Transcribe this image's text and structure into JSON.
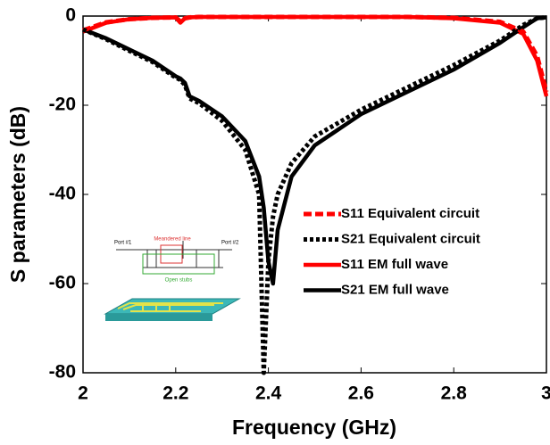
{
  "chart_data": {
    "type": "line",
    "xlabel": "Frequency (GHz)",
    "ylabel": "S parameters (dB)",
    "x": [
      2,
      2.05,
      2.1,
      2.15,
      2.2,
      2.21,
      2.22,
      2.23,
      2.25,
      2.3,
      2.35,
      2.38,
      2.39,
      2.4,
      2.41,
      2.42,
      2.45,
      2.5,
      2.6,
      2.7,
      2.8,
      2.9,
      2.95,
      2.98,
      3
    ],
    "series": [
      {
        "name": "S11 Equivalent circuit",
        "color": "#ff0000",
        "dash": "dashed",
        "values": [
          -3.2,
          -1.4,
          -0.7,
          -0.4,
          -0.3,
          -1.2,
          -0.5,
          -0.3,
          -0.2,
          -0.2,
          -0.2,
          -0.2,
          -0.2,
          -0.2,
          -0.2,
          -0.2,
          -0.2,
          -0.2,
          -0.2,
          -0.2,
          -0.4,
          -1.3,
          -3.5,
          -9,
          -17
        ]
      },
      {
        "name": "S21 Equivalent circuit",
        "color": "#000000",
        "dash": "dotted",
        "values": [
          -3,
          -5.2,
          -7.8,
          -10.3,
          -13.8,
          -14.3,
          -15.5,
          -18.5,
          -19.5,
          -23.5,
          -30,
          -40,
          -80,
          -55,
          -45,
          -40,
          -33,
          -27,
          -21,
          -16,
          -11,
          -5.5,
          -2,
          -0.5,
          -0.3
        ]
      },
      {
        "name": "S11 EM full wave",
        "color": "#ff0000",
        "dash": "solid",
        "values": [
          -3.5,
          -1.5,
          -0.7,
          -0.4,
          -0.3,
          -1.5,
          -0.5,
          -0.3,
          -0.2,
          -0.2,
          -0.2,
          -0.2,
          -0.2,
          -0.2,
          -0.2,
          -0.2,
          -0.2,
          -0.2,
          -0.2,
          -0.2,
          -0.5,
          -1.5,
          -4,
          -10,
          -18
        ]
      },
      {
        "name": "S21 EM full wave",
        "color": "#000000",
        "dash": "solid",
        "values": [
          -3,
          -5,
          -7.5,
          -10,
          -13.5,
          -14,
          -15,
          -18,
          -19,
          -22.5,
          -28,
          -36,
          -43,
          -55,
          -60,
          -48,
          -36,
          -29,
          -22,
          -17,
          -12,
          -6,
          -2.5,
          -0.5,
          -0.3
        ]
      }
    ],
    "xlim": [
      2,
      3
    ],
    "xticks": [
      2,
      2.2,
      2.4,
      2.6,
      2.8,
      3
    ],
    "ylim": [
      -80,
      0
    ],
    "yticks": [
      -80,
      -60,
      -40,
      -20,
      0
    ],
    "grid": false,
    "legend": "right"
  },
  "inset": {
    "labels": [
      "Meandered line",
      "Open stubs",
      "Port #1",
      "Port #2"
    ]
  }
}
